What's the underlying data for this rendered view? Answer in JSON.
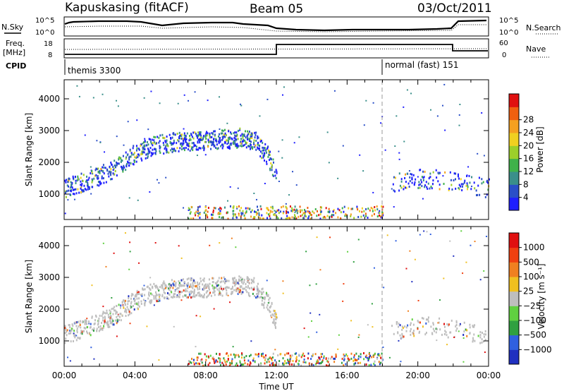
{
  "header": {
    "station": "Kapuskasing (fitACF)",
    "beam": "Beam 05",
    "date": "03/Oct/2011"
  },
  "param_panel": {
    "nsky_label": "N.Sky",
    "nsearch_label": "N.Search",
    "freq_label_line1": "Freq.",
    "freq_label_line2": "[MHz]",
    "nave_label": "Nave",
    "cpid_label": "CPID",
    "noise_ticks_left": [
      "10^5",
      "10^0"
    ],
    "noise_ticks_right": [
      "10^5",
      "10^0"
    ],
    "freq_ticks": [
      "18",
      "8"
    ],
    "nave_ticks": [
      "60",
      "0"
    ],
    "cpid_segments": [
      {
        "start_hour": 0,
        "end_hour": 18,
        "text": "themis 3300"
      },
      {
        "start_hour": 18,
        "end_hour": 24,
        "text": "normal (fast) 151"
      }
    ]
  },
  "chart_data": [
    {
      "type": "heatmap",
      "title": "",
      "xlabel": "",
      "ylabel": "Slant Range [km]",
      "xlim": [
        0,
        24
      ],
      "ylim": [
        200,
        4600
      ],
      "yticks": [
        1000,
        2000,
        3000,
        4000
      ],
      "colorbar": {
        "label": "Power [dB]",
        "ticks": [
          "4",
          "8",
          "12",
          "16",
          "20",
          "24",
          "28"
        ],
        "colors": [
          "#1f1fff",
          "#2a4fc8",
          "#3a8f8a",
          "#3fb24a",
          "#9ccf2a",
          "#f0d020",
          "#f5a020",
          "#f06010",
          "#e01010"
        ]
      },
      "series": [
        {
          "region": "band-main",
          "time_hours": [
            0.0,
            1.0,
            2.0,
            3.0,
            4.0,
            5.0,
            6.0,
            7.0,
            8.0,
            9.0,
            10.0,
            10.8,
            11.5,
            12.0
          ],
          "range_km": [
            1200,
            1400,
            1600,
            1900,
            2300,
            2550,
            2650,
            2700,
            2700,
            2750,
            2800,
            2700,
            2200,
            1600
          ]
        },
        {
          "region": "band-late",
          "time_hours": [
            18.5,
            19.0,
            20.0,
            21.0,
            22.0,
            23.0,
            24.0
          ],
          "range_km": [
            1300,
            1400,
            1500,
            1500,
            1400,
            1300,
            1200
          ]
        }
      ]
    },
    {
      "type": "heatmap",
      "title": "",
      "xlabel": "Time UT",
      "ylabel": "Slant Range [km]",
      "xlim": [
        0,
        24
      ],
      "ylim": [
        200,
        4600
      ],
      "xticks": [
        "00:00",
        "04:00",
        "08:00",
        "12:00",
        "16:00",
        "20:00",
        "00:00"
      ],
      "yticks": [
        1000,
        2000,
        3000,
        4000
      ],
      "colorbar": {
        "label": "Velocity [m s⁻¹]",
        "ticks": [
          "1000",
          "500",
          "100",
          "25",
          "−25",
          "−100",
          "−500",
          "−1000"
        ],
        "colors": [
          "#2030c0",
          "#3060e0",
          "#30a040",
          "#60d040",
          "#bebebe",
          "#f0c020",
          "#f08020",
          "#f04010",
          "#e01010"
        ]
      }
    }
  ]
}
